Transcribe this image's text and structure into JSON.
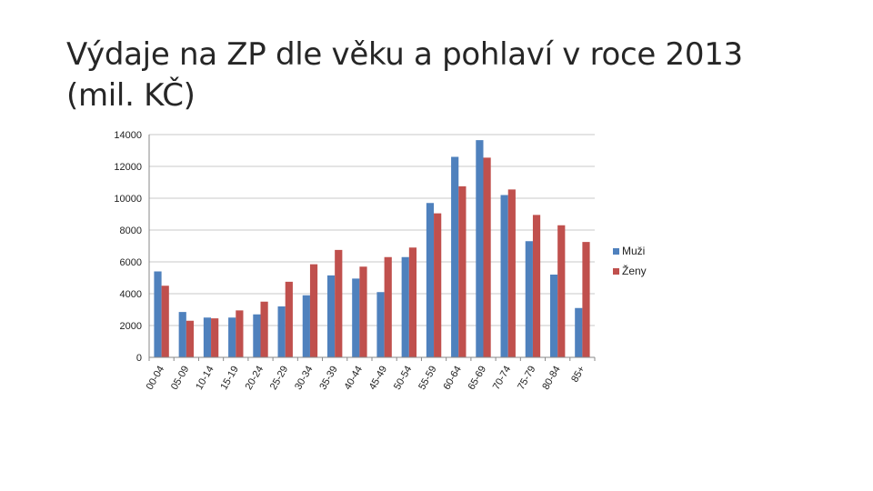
{
  "slide": {
    "title_line1": "Výdaje na ZP dle věku a pohlaví v roce 2013",
    "title_line2": "(mil. KČ)"
  },
  "chart_data": {
    "type": "bar",
    "title": "",
    "xlabel": "",
    "ylabel": "",
    "ylim": [
      0,
      14000
    ],
    "yticks": [
      0,
      2000,
      4000,
      6000,
      8000,
      10000,
      12000,
      14000
    ],
    "grid": true,
    "legend_position": "right",
    "categories": [
      "00-04",
      "05-09",
      "10-14",
      "15-19",
      "20-24",
      "25-29",
      "30-34",
      "35-39",
      "40-44",
      "45-49",
      "50-54",
      "55-59",
      "60-64",
      "65-69",
      "70-74",
      "75-79",
      "80-84",
      "85+"
    ],
    "series": [
      {
        "name": "Muži",
        "color": "#4f81bd",
        "values": [
          5400,
          2850,
          2500,
          2500,
          2700,
          3200,
          3900,
          5150,
          4950,
          4100,
          6300,
          9700,
          12600,
          13650,
          10200,
          7300,
          5200,
          3100
        ]
      },
      {
        "name": "Ženy",
        "color": "#c0504d",
        "values": [
          4500,
          2300,
          2450,
          2950,
          3500,
          4750,
          5850,
          6750,
          5700,
          6300,
          6900,
          9050,
          10750,
          12550,
          10550,
          8950,
          8300,
          7250
        ]
      }
    ]
  }
}
